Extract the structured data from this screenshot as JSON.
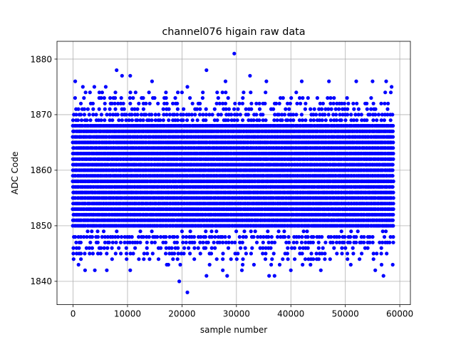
{
  "chart_data": {
    "type": "scatter",
    "title": "channel076 higain raw data",
    "xlabel": "sample number",
    "ylabel": "ADC Code",
    "xlim": [
      -2950,
      61950
    ],
    "ylim": [
      1835.8,
      1883.2
    ],
    "xticks": [
      0,
      10000,
      20000,
      30000,
      40000,
      50000,
      60000
    ],
    "xtick_labels": [
      "0",
      "10000",
      "20000",
      "30000",
      "40000",
      "50000",
      "60000"
    ],
    "yticks": [
      1840,
      1850,
      1860,
      1870,
      1880
    ],
    "ytick_labels": [
      "1840",
      "1850",
      "1860",
      "1870",
      "1880"
    ],
    "grid": true,
    "marker_color": "#0000ff",
    "n_samples": 59000,
    "dense_band": {
      "x_range": [
        0,
        59000
      ],
      "y_values": [
        1847,
        1848,
        1849,
        1850,
        1851,
        1852,
        1853,
        1854,
        1855,
        1856,
        1857,
        1858,
        1859,
        1860,
        1861,
        1862,
        1863,
        1864,
        1865,
        1866,
        1867,
        1868,
        1869,
        1870
      ],
      "sparse_rows": [
        1849
      ]
    },
    "outliers": [
      {
        "x": 400,
        "y": 1876
      },
      {
        "x": 1800,
        "y": 1875
      },
      {
        "x": 2300,
        "y": 1874
      },
      {
        "x": 3900,
        "y": 1875
      },
      {
        "x": 6000,
        "y": 1875
      },
      {
        "x": 8000,
        "y": 1878
      },
      {
        "x": 9000,
        "y": 1877
      },
      {
        "x": 10500,
        "y": 1877
      },
      {
        "x": 14500,
        "y": 1876
      },
      {
        "x": 20000,
        "y": 1874
      },
      {
        "x": 21000,
        "y": 1875
      },
      {
        "x": 24500,
        "y": 1878
      },
      {
        "x": 28000,
        "y": 1876
      },
      {
        "x": 29600,
        "y": 1881
      },
      {
        "x": 32500,
        "y": 1877
      },
      {
        "x": 35500,
        "y": 1876
      },
      {
        "x": 42000,
        "y": 1876
      },
      {
        "x": 47000,
        "y": 1876
      },
      {
        "x": 52000,
        "y": 1876
      },
      {
        "x": 55000,
        "y": 1876
      },
      {
        "x": 57500,
        "y": 1876
      },
      {
        "x": 58500,
        "y": 1875
      },
      {
        "x": 1000,
        "y": 1843
      },
      {
        "x": 2200,
        "y": 1842
      },
      {
        "x": 4000,
        "y": 1842
      },
      {
        "x": 6200,
        "y": 1842
      },
      {
        "x": 10500,
        "y": 1842
      },
      {
        "x": 17500,
        "y": 1843
      },
      {
        "x": 19500,
        "y": 1840
      },
      {
        "x": 21000,
        "y": 1838
      },
      {
        "x": 24500,
        "y": 1841
      },
      {
        "x": 27500,
        "y": 1842
      },
      {
        "x": 28300,
        "y": 1841
      },
      {
        "x": 31000,
        "y": 1842
      },
      {
        "x": 36000,
        "y": 1841
      },
      {
        "x": 37000,
        "y": 1841
      },
      {
        "x": 40000,
        "y": 1842
      },
      {
        "x": 45500,
        "y": 1842
      },
      {
        "x": 51000,
        "y": 1843
      },
      {
        "x": 55500,
        "y": 1842
      },
      {
        "x": 57000,
        "y": 1841
      },
      {
        "x": 58700,
        "y": 1843
      }
    ]
  }
}
